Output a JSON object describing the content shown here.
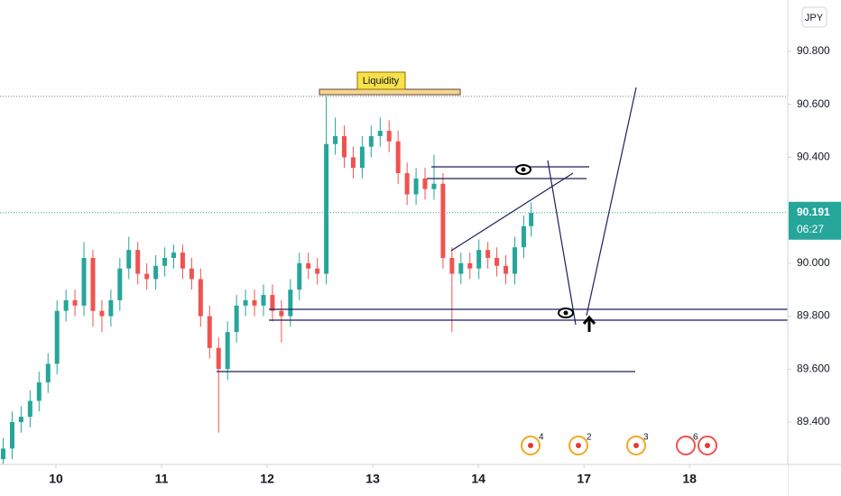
{
  "chart_data": {
    "type": "candlestick",
    "currency": "JPY",
    "annotation": "Liquidity",
    "x": [
      -0.5,
      -0.415,
      -0.33,
      -0.245,
      -0.16,
      -0.075,
      0.01,
      0.095,
      0.18,
      0.265,
      0.35,
      0.435,
      0.52,
      0.605,
      0.69,
      0.775,
      0.86,
      0.945,
      1.03,
      1.115,
      1.2,
      1.285,
      1.37,
      1.455,
      1.54,
      1.625,
      1.71,
      1.795,
      1.88,
      1.965,
      2.05,
      2.135,
      2.22,
      2.305,
      2.39,
      2.475,
      2.56,
      2.645,
      2.73,
      2.815,
      2.9,
      2.985,
      3.07,
      3.155,
      3.24,
      3.325,
      3.41,
      3.495,
      3.58,
      3.665,
      3.75,
      3.835,
      3.92,
      4.005,
      4.09,
      4.175,
      4.26,
      4.345,
      4.43,
      4.5
    ],
    "open": [
      89.26,
      89.3,
      89.4,
      89.42,
      89.48,
      89.55,
      89.62,
      89.82,
      89.86,
      89.84,
      90.02,
      89.82,
      89.8,
      89.86,
      89.98,
      90.05,
      89.96,
      89.94,
      89.99,
      90.02,
      90.04,
      89.98,
      89.94,
      89.8,
      89.68,
      89.6,
      89.74,
      89.84,
      89.86,
      89.84,
      89.88,
      89.82,
      89.8,
      89.9,
      90.0,
      89.98,
      89.96,
      90.45,
      90.48,
      90.4,
      90.36,
      90.44,
      90.48,
      90.5,
      90.46,
      90.34,
      90.26,
      90.32,
      90.28,
      90.3,
      90.02,
      89.96,
      90.0,
      89.98,
      90.05,
      90.02,
      89.99,
      89.96,
      90.06,
      90.14
    ],
    "high": [
      89.34,
      89.44,
      89.46,
      89.52,
      89.59,
      89.66,
      89.86,
      89.9,
      89.9,
      90.08,
      90.05,
      89.86,
      89.9,
      90.02,
      90.1,
      90.08,
      90.0,
      90.03,
      90.06,
      90.07,
      90.07,
      90.02,
      89.98,
      89.84,
      89.72,
      89.78,
      89.88,
      89.9,
      89.9,
      89.92,
      89.92,
      89.86,
      89.94,
      90.04,
      90.04,
      90.02,
      90.63,
      90.55,
      90.52,
      90.44,
      90.48,
      90.52,
      90.55,
      90.54,
      90.5,
      90.38,
      90.36,
      90.36,
      90.41,
      90.34,
      90.06,
      90.04,
      90.04,
      90.09,
      90.08,
      90.06,
      90.03,
      90.1,
      90.18,
      90.23
    ],
    "low": [
      89.24,
      89.26,
      89.36,
      89.38,
      89.44,
      89.51,
      89.58,
      89.78,
      89.8,
      89.8,
      89.76,
      89.74,
      89.76,
      89.82,
      89.94,
      89.92,
      89.9,
      89.9,
      89.95,
      89.98,
      89.94,
      89.9,
      89.76,
      89.64,
      89.36,
      89.56,
      89.7,
      89.8,
      89.8,
      89.8,
      89.78,
      89.7,
      89.76,
      89.86,
      89.94,
      89.92,
      89.92,
      90.41,
      90.36,
      90.32,
      90.32,
      90.4,
      90.44,
      90.42,
      90.3,
      90.22,
      90.22,
      90.24,
      90.24,
      89.98,
      89.74,
      89.92,
      89.94,
      89.94,
      89.98,
      89.95,
      89.92,
      89.92,
      90.02,
      90.1
    ],
    "close": [
      89.3,
      89.4,
      89.42,
      89.48,
      89.55,
      89.62,
      89.82,
      89.86,
      89.84,
      90.02,
      89.82,
      89.8,
      89.86,
      89.98,
      90.05,
      89.96,
      89.94,
      89.99,
      90.02,
      90.04,
      89.98,
      89.94,
      89.8,
      89.68,
      89.6,
      89.74,
      89.84,
      89.86,
      89.84,
      89.88,
      89.82,
      89.8,
      89.9,
      90.0,
      89.98,
      89.96,
      90.45,
      90.48,
      90.4,
      90.36,
      90.44,
      90.48,
      90.5,
      90.46,
      90.34,
      90.26,
      90.32,
      90.28,
      90.3,
      90.02,
      89.96,
      90.0,
      89.98,
      90.05,
      90.02,
      89.99,
      89.96,
      90.06,
      90.14,
      90.19
    ],
    "up_color": "#26a69a",
    "down_color": "#ef5350",
    "xlim": [
      -0.53,
      6.93
    ],
    "xticks": [
      {
        "value": 0,
        "label": "10"
      },
      {
        "value": 1,
        "label": "11"
      },
      {
        "value": 2,
        "label": "12"
      },
      {
        "value": 3,
        "label": "13"
      },
      {
        "value": 4,
        "label": "14"
      },
      {
        "value": 5,
        "label": "17"
      },
      {
        "value": 6,
        "label": "18"
      }
    ],
    "ylim": [
      89.24,
      90.994
    ],
    "yticks": [
      {
        "value": 89.4,
        "label": "89.400"
      },
      {
        "value": 89.6,
        "label": "89.600"
      },
      {
        "value": 89.8,
        "label": "89.800"
      },
      {
        "value": 90.0,
        "label": "90.000"
      },
      {
        "value": 90.4,
        "label": "90.400"
      },
      {
        "value": 90.6,
        "label": "90.600"
      },
      {
        "value": 90.8,
        "label": "90.800"
      }
    ],
    "last_price": 90.191,
    "countdown": "06:27",
    "events": [
      "4",
      "2",
      "3",
      "6"
    ]
  }
}
